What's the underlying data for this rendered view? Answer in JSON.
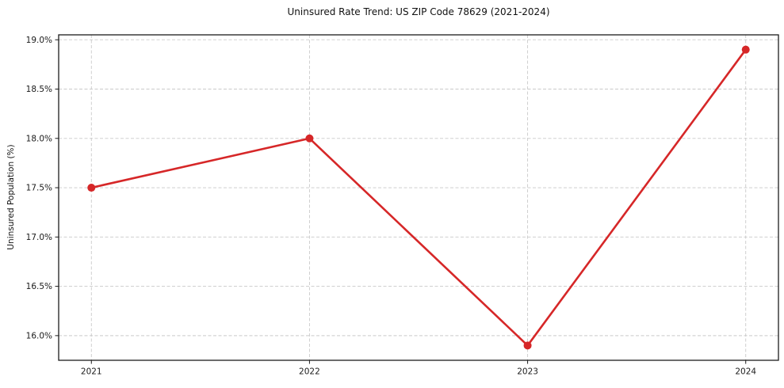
{
  "page": {
    "background": "#ffffff"
  },
  "chart_data": {
    "type": "line",
    "title": "Uninsured Rate Trend: US ZIP Code 78629 (2021-2024)",
    "xlabel": "",
    "ylabel": "Uninsured Population (%)",
    "x": [
      2021,
      2022,
      2023,
      2024
    ],
    "x_tick_labels": [
      "2021",
      "2022",
      "2023",
      "2024"
    ],
    "series": [
      {
        "name": "Uninsured rate",
        "values": [
          17.5,
          18.0,
          15.9,
          18.9
        ]
      }
    ],
    "y_ticks": [
      16.0,
      16.5,
      17.0,
      17.5,
      18.0,
      18.5,
      19.0
    ],
    "y_tick_labels": [
      "16.0%",
      "16.5%",
      "17.0%",
      "17.5%",
      "18.0%",
      "18.5%",
      "19.0%"
    ],
    "ylim": [
      15.75,
      19.05
    ],
    "xlim": [
      2020.85,
      2024.15
    ],
    "grid": true,
    "grid_style": "dashed",
    "legend": "none",
    "colors": {
      "line": "#d62728",
      "marker": "#d62728",
      "grid": "#c9c9c9",
      "spine": "#1c1c1c",
      "text": "#1a1a1a"
    },
    "marker": "circle",
    "marker_radius": 5,
    "line_width": 2.6
  }
}
